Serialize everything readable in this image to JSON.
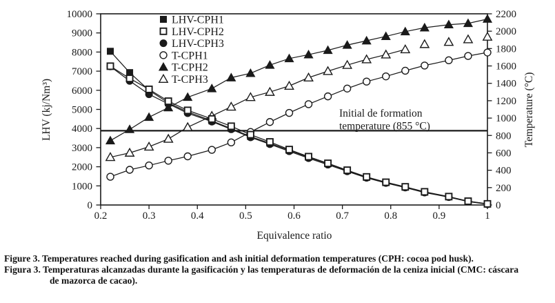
{
  "figure": {
    "caption_en": "Figure 3. Temperatures reached during gasification and ash initial deformation temperatures (CPH: cocoa pod husk).",
    "caption_es_line1": "Figura 3. Temperaturas alcanzadas durante la gasificación y las temperaturas de deformación de la ceniza inicial (CMC: cáscara",
    "caption_es_line2": "de mazorca de cacao)."
  },
  "chart_data": {
    "type": "line",
    "title": "",
    "xlabel": "Equivalence ratio",
    "ylabel_left": "LHV (kj/Nm³)",
    "ylabel_right": "Temperature (°C)",
    "xlim": [
      0.2,
      1.0
    ],
    "x_ticks": [
      0.2,
      0.3,
      0.4,
      0.5,
      0.6,
      0.7,
      0.8,
      0.9,
      1
    ],
    "ylim_left": [
      0,
      10000
    ],
    "ytick_step_left": 1000,
    "ylim_right": [
      0,
      2200
    ],
    "ytick_step_right": 200,
    "grid": false,
    "legend_position": "top-center-inside",
    "annotation": {
      "line1": "Initial de formation",
      "line2": "temperature (855 °C)",
      "value_c": 855
    },
    "x": [
      0.22,
      0.26,
      0.3,
      0.34,
      0.38,
      0.43,
      0.47,
      0.51,
      0.55,
      0.59,
      0.63,
      0.67,
      0.71,
      0.75,
      0.79,
      0.83,
      0.87,
      0.92,
      0.96,
      1.0
    ],
    "series": [
      {
        "name": "LHV-CPH1",
        "axis": "left",
        "marker": "square-filled",
        "values": [
          8040,
          6925,
          6000,
          5340,
          4870,
          4400,
          4000,
          3580,
          3230,
          2860,
          2500,
          2160,
          1800,
          1450,
          1170,
          930,
          670,
          430,
          200,
          50
        ]
      },
      {
        "name": "LHV-CPH2",
        "axis": "left",
        "marker": "square-open",
        "values": [
          7260,
          6620,
          6050,
          5430,
          4950,
          4500,
          4120,
          3680,
          3300,
          2900,
          2530,
          2180,
          1820,
          1470,
          1190,
          950,
          690,
          440,
          200,
          60
        ]
      },
      {
        "name": "LHV-CPH3",
        "axis": "left",
        "marker": "circle-filled",
        "values": [
          7250,
          6490,
          5790,
          5290,
          4800,
          4360,
          3960,
          3540,
          3180,
          2810,
          2450,
          2110,
          1760,
          1420,
          1150,
          910,
          650,
          410,
          180,
          40
        ]
      },
      {
        "name": "T-CPH1",
        "axis": "right",
        "marker": "circle-open",
        "values": [
          325,
          405,
          455,
          510,
          560,
          635,
          720,
          840,
          955,
          1060,
          1160,
          1250,
          1340,
          1420,
          1480,
          1545,
          1605,
          1665,
          1715,
          1755
        ]
      },
      {
        "name": "T-CPH2",
        "axis": "right",
        "marker": "triangle-filled",
        "values": [
          740,
          870,
          1010,
          1120,
          1240,
          1340,
          1465,
          1515,
          1610,
          1685,
          1730,
          1780,
          1840,
          1890,
          1940,
          1995,
          2040,
          2075,
          2090,
          2140
        ]
      },
      {
        "name": "T-CPH3",
        "axis": "right",
        "marker": "triangle-open",
        "line_through": 16,
        "values": [
          550,
          600,
          670,
          760,
          895,
          1025,
          1130,
          1240,
          1300,
          1370,
          1465,
          1540,
          1610,
          1675,
          1730,
          1790,
          1850,
          1875,
          1905,
          1935
        ]
      }
    ],
    "colors": {
      "ink": "#1a1a1a",
      "background": "#ffffff"
    }
  }
}
